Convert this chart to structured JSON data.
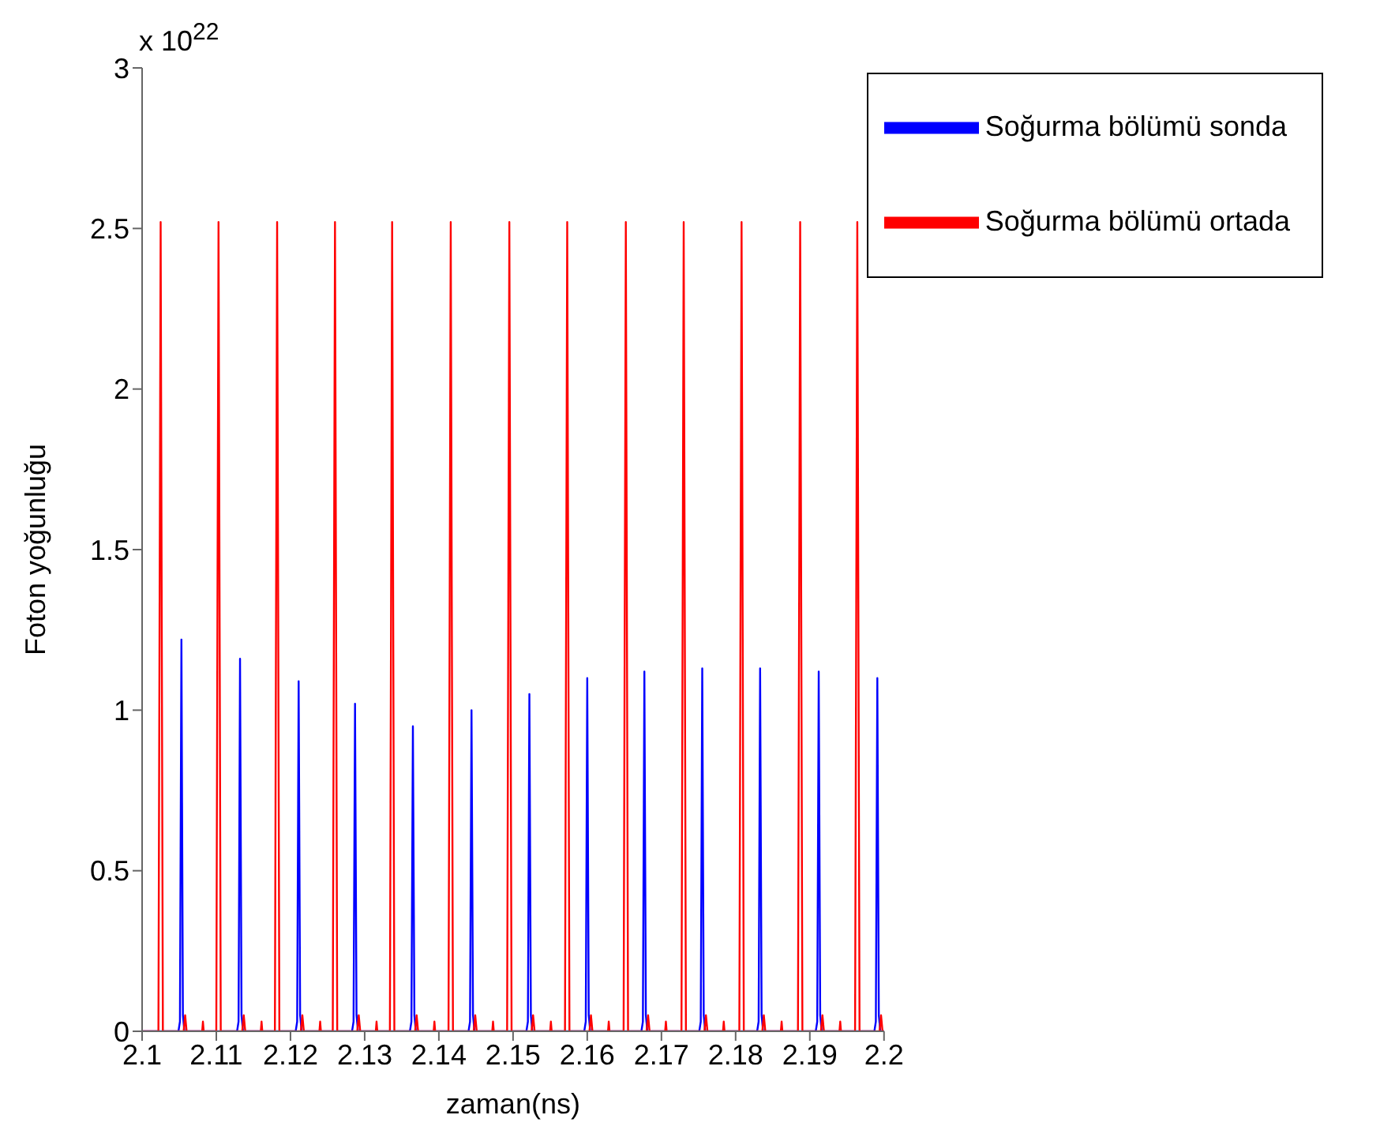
{
  "chart_data": {
    "type": "line",
    "xlabel": "zaman(ns)",
    "ylabel": "Foton yoğunluğu",
    "annotations": [
      "x 10$^{22}$"
    ],
    "xlim": [
      2.1,
      2.2
    ],
    "xticks": [
      2.1,
      2.11,
      2.12,
      2.13,
      2.14,
      2.15,
      2.16,
      2.17,
      2.18,
      2.19,
      2.2
    ],
    "ylim": [
      0,
      3
    ],
    "yticks": [
      0,
      0.5,
      1,
      1.5,
      2,
      2.5,
      3
    ],
    "grid": false,
    "legend": "top right",
    "marker": "none",
    "line_style": "solid",
    "series": [
      {
        "name": "Soğurma bölümü sonda",
        "color": "#0000ff",
        "x": [
          2.1,
          2.1049,
          2.1051,
          2.1053,
          2.1055,
          2.1057,
          2.1128,
          2.113,
          2.1132,
          2.1134,
          2.1136,
          2.1207,
          2.1209,
          2.1211,
          2.1213,
          2.1215,
          2.1283,
          2.1285,
          2.1287,
          2.1289,
          2.1291,
          2.1361,
          2.1363,
          2.1365,
          2.1367,
          2.1369,
          2.144,
          2.1442,
          2.1444,
          2.1446,
          2.1448,
          2.1518,
          2.152,
          2.1522,
          2.1524,
          2.1526,
          2.1596,
          2.1598,
          2.16,
          2.1602,
          2.1604,
          2.1673,
          2.1675,
          2.1677,
          2.1679,
          2.1681,
          2.1751,
          2.1753,
          2.1755,
          2.1757,
          2.1759,
          2.1829,
          2.1831,
          2.1833,
          2.1835,
          2.1837,
          2.1908,
          2.191,
          2.1912,
          2.1914,
          2.1916,
          2.1987,
          2.1989,
          2.1991,
          2.1993,
          2.1995,
          2.2
        ],
        "values": [
          0,
          0,
          0.03,
          1.22,
          0.05,
          0,
          0,
          0.03,
          1.16,
          0.05,
          0,
          0,
          0.03,
          1.09,
          0.05,
          0,
          0,
          0.03,
          1.02,
          0.05,
          0,
          0,
          0.03,
          0.95,
          0.05,
          0,
          0,
          0.03,
          1.0,
          0.05,
          0,
          0,
          0.03,
          1.05,
          0.05,
          0,
          0,
          0.03,
          1.1,
          0.05,
          0,
          0,
          0.03,
          1.12,
          0.05,
          0,
          0,
          0.03,
          1.13,
          0.05,
          0,
          0,
          0.03,
          1.13,
          0.05,
          0,
          0,
          0.03,
          1.12,
          0.05,
          0,
          0,
          0.03,
          1.1,
          0.05,
          0,
          0
        ]
      },
      {
        "name": "Soğurma bölümü ortada",
        "color": "#ff0000",
        "x": [
          2.1,
          2.1022,
          2.1025,
          2.1028,
          2.1056,
          2.1058,
          2.106,
          2.1081,
          2.1082,
          2.1083,
          2.11,
          2.1103,
          2.1106,
          2.1135,
          2.1137,
          2.1139,
          2.116,
          2.1161,
          2.1162,
          2.1179,
          2.1182,
          2.1185,
          2.1214,
          2.1216,
          2.1218,
          2.1239,
          2.124,
          2.1241,
          2.1257,
          2.126,
          2.1263,
          2.129,
          2.1292,
          2.1294,
          2.1315,
          2.1316,
          2.1317,
          2.1334,
          2.1337,
          2.134,
          2.1368,
          2.137,
          2.1372,
          2.1393,
          2.1394,
          2.1395,
          2.1413,
          2.1416,
          2.1419,
          2.1447,
          2.1449,
          2.1451,
          2.1472,
          2.1473,
          2.1474,
          2.1492,
          2.1495,
          2.1498,
          2.1525,
          2.1527,
          2.1529,
          2.155,
          2.1551,
          2.1552,
          2.157,
          2.1573,
          2.1576,
          2.1603,
          2.1605,
          2.1607,
          2.1628,
          2.1629,
          2.163,
          2.1649,
          2.1652,
          2.1655,
          2.168,
          2.1682,
          2.1684,
          2.1705,
          2.1706,
          2.1707,
          2.1727,
          2.173,
          2.1733,
          2.1758,
          2.176,
          2.1762,
          2.1783,
          2.1784,
          2.1785,
          2.1805,
          2.1808,
          2.1811,
          2.1836,
          2.1838,
          2.184,
          2.1861,
          2.1862,
          2.1863,
          2.1884,
          2.1887,
          2.189,
          2.1915,
          2.1917,
          2.1919,
          2.194,
          2.1941,
          2.1942,
          2.1961,
          2.1964,
          2.1967,
          2.1994,
          2.1996,
          2.1998,
          2.2
        ],
        "values": [
          0,
          0,
          2.52,
          0,
          0,
          0.05,
          0,
          0,
          0.03,
          0,
          0,
          2.52,
          0,
          0,
          0.05,
          0,
          0,
          0.03,
          0,
          0,
          2.52,
          0,
          0,
          0.05,
          0,
          0,
          0.03,
          0,
          0,
          2.52,
          0,
          0,
          0.05,
          0,
          0,
          0.03,
          0,
          0,
          2.52,
          0,
          0,
          0.05,
          0,
          0,
          0.03,
          0,
          0,
          2.52,
          0,
          0,
          0.05,
          0,
          0,
          0.03,
          0,
          0,
          2.52,
          0,
          0,
          0.05,
          0,
          0,
          0.03,
          0,
          0,
          2.52,
          0,
          0,
          0.05,
          0,
          0,
          0.03,
          0,
          0,
          2.52,
          0,
          0,
          0.05,
          0,
          0,
          0.03,
          0,
          0,
          2.52,
          0,
          0,
          0.05,
          0,
          0,
          0.03,
          0,
          0,
          2.52,
          0,
          0,
          0.05,
          0,
          0,
          0.03,
          0,
          0,
          2.52,
          0,
          0,
          0.05,
          0,
          0,
          0.03,
          0,
          0,
          2.52,
          0,
          0,
          0.05,
          0,
          0
        ]
      }
    ]
  }
}
